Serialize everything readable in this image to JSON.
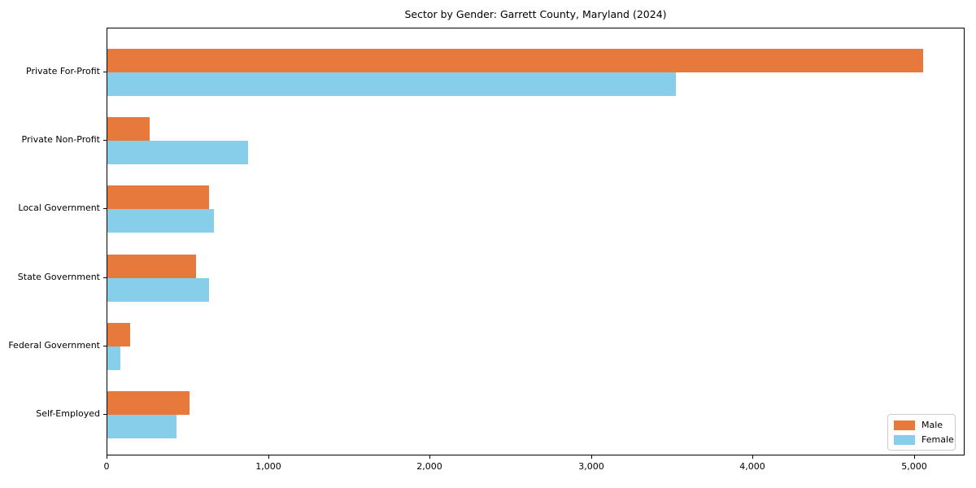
{
  "title": "Sector by Gender: Garrett County, Maryland (2024)",
  "chart_data": {
    "type": "bar",
    "orientation": "horizontal",
    "title": "Sector by Gender: Garrett County, Maryland (2024)",
    "categories": [
      "Private For-Profit",
      "Private Non-Profit",
      "Local Government",
      "State Government",
      "Federal Government",
      "Self-Employed"
    ],
    "series": [
      {
        "name": "Male",
        "color": "#e8793d",
        "values": [
          5050,
          260,
          630,
          550,
          140,
          510
        ]
      },
      {
        "name": "Female",
        "color": "#87ceeb",
        "values": [
          3520,
          870,
          660,
          630,
          80,
          430
        ]
      }
    ],
    "xlabel": "",
    "ylabel": "",
    "xlim": [
      0,
      5302
    ],
    "x_tick_values": [
      0,
      1000,
      2000,
      3000,
      4000,
      5000
    ],
    "x_tick_labels": [
      "0",
      "1,000",
      "2,000",
      "3,000",
      "4,000",
      "5,000"
    ],
    "grid": false,
    "legend_position": "lower right",
    "background_color": "#ffffff",
    "axis_color": "#000000"
  }
}
